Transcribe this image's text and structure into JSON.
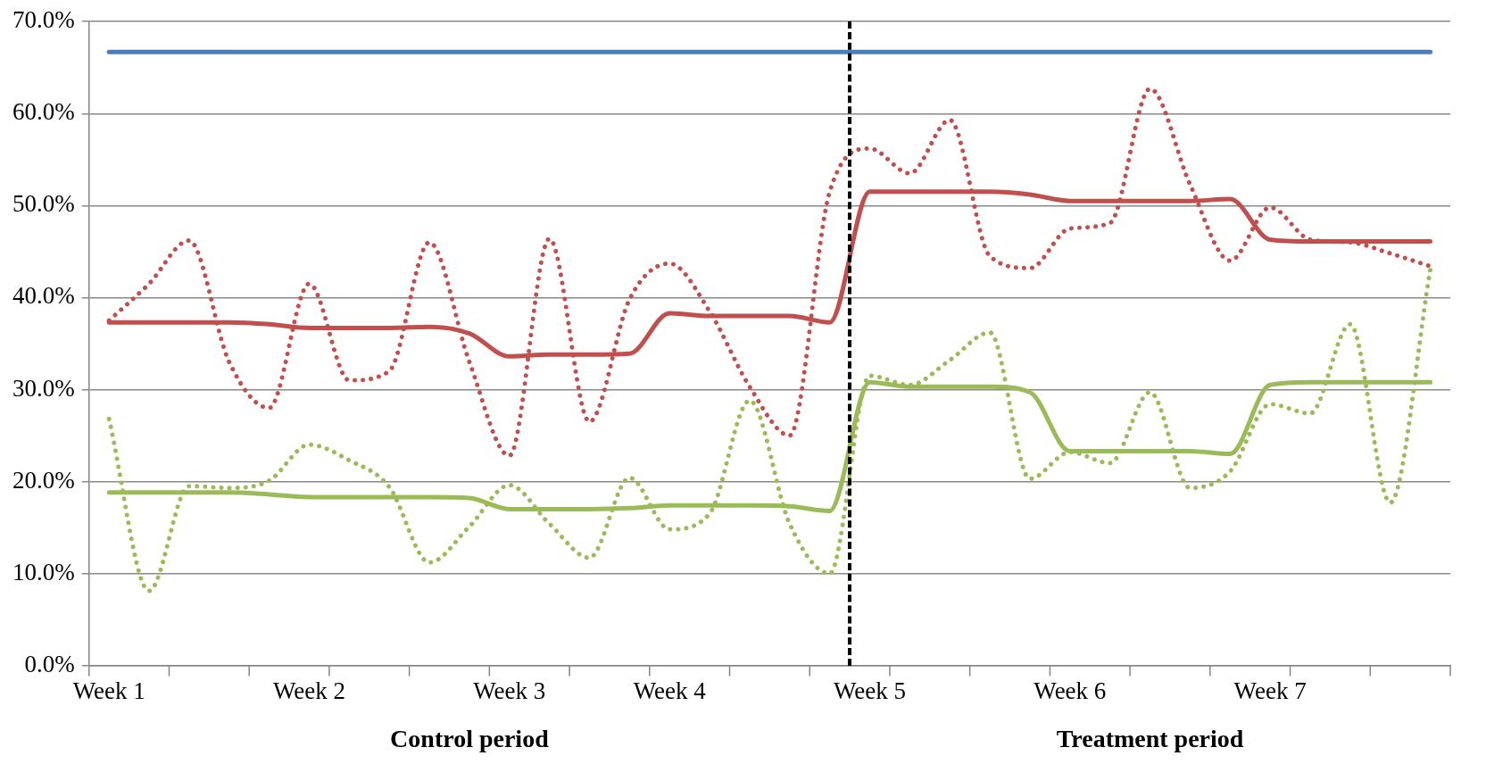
{
  "chart_data": {
    "type": "line",
    "categories": [
      "Week 1",
      null,
      null,
      null,
      null,
      "Week 2",
      null,
      null,
      null,
      null,
      "Week 3",
      null,
      null,
      null,
      "Week 4",
      null,
      null,
      null,
      null,
      "Week 5",
      null,
      null,
      null,
      null,
      "Week 6",
      null,
      null,
      null,
      null,
      "Week 7",
      null,
      null,
      null,
      null
    ],
    "series": [
      {
        "color": "#4a7ebb",
        "line_style": "solid",
        "values": [
          66.7,
          66.7,
          66.7,
          66.7,
          66.7,
          66.7,
          66.7,
          66.7,
          66.7,
          66.7,
          66.7,
          66.7,
          66.7,
          66.7,
          66.7,
          66.7,
          66.7,
          66.7,
          66.7,
          66.7,
          66.7,
          66.7,
          66.7,
          66.7,
          66.7,
          66.7,
          66.7,
          66.7,
          66.7,
          66.7,
          66.7,
          66.7,
          66.7,
          66.7
        ]
      },
      {
        "color": "#c0504d",
        "line_style": "dotted",
        "values": [
          37.5,
          41.5,
          46.2,
          33,
          28,
          41.5,
          31,
          32,
          46,
          33,
          22.8,
          46.4,
          26.5,
          39.8,
          43.7,
          38.5,
          30.3,
          25,
          51.5,
          56.2,
          53.5,
          59.3,
          44.5,
          43.2,
          47.5,
          48.1,
          62.7,
          52.3,
          44,
          49.8,
          46.3,
          46,
          44.8,
          43.4
        ]
      },
      {
        "color": "#c0504d",
        "line_style": "solid",
        "values": [
          37.3,
          37.3,
          37.3,
          37.3,
          37.1,
          36.7,
          36.7,
          36.7,
          36.8,
          36.1,
          33.6,
          33.8,
          33.8,
          33.9,
          38.3,
          38,
          38,
          38,
          37.3,
          51.5,
          51.5,
          51.5,
          51.5,
          51.2,
          50.5,
          50.5,
          50.5,
          50.5,
          50.7,
          46.3,
          46.1,
          46.1,
          46.1,
          46.1
        ]
      },
      {
        "color": "#9bbb59",
        "line_style": "dotted",
        "values": [
          26.8,
          8.1,
          19.5,
          19.3,
          20.1,
          24,
          22.3,
          19.4,
          11.2,
          15.1,
          19.6,
          15.4,
          11.7,
          20.4,
          14.8,
          16.5,
          28.8,
          15.4,
          10,
          31.5,
          30.5,
          33.2,
          36.2,
          20.3,
          23.2,
          22,
          29.7,
          19.3,
          21.1,
          28.4,
          27.4,
          37.1,
          17.7,
          43
        ]
      },
      {
        "color": "#9bbb59",
        "line_style": "solid",
        "values": [
          18.8,
          18.8,
          18.8,
          18.8,
          18.6,
          18.3,
          18.3,
          18.3,
          18.3,
          18.2,
          17,
          17,
          17,
          17.1,
          17.4,
          17.4,
          17.4,
          17.3,
          16.8,
          30.8,
          30.3,
          30.3,
          30.3,
          29.7,
          23.3,
          23.3,
          23.3,
          23.3,
          23,
          30.5,
          30.8,
          30.8,
          30.8,
          30.8
        ]
      }
    ],
    "ylim": [
      0,
      70
    ],
    "yticks": [
      {
        "value": 0,
        "label": "0.0%"
      },
      {
        "value": 10,
        "label": "10.0%"
      },
      {
        "value": 20,
        "label": "20.0%"
      },
      {
        "value": 30,
        "label": "30.0%"
      },
      {
        "value": 40,
        "label": "40.0%"
      },
      {
        "value": 50,
        "label": "50.0%"
      },
      {
        "value": 60,
        "label": "60.0%"
      },
      {
        "value": 70,
        "label": "70.0%"
      }
    ],
    "grid": "y",
    "legend": false,
    "marker": "none",
    "annotations": [
      "Control period",
      "Treatment period"
    ]
  }
}
